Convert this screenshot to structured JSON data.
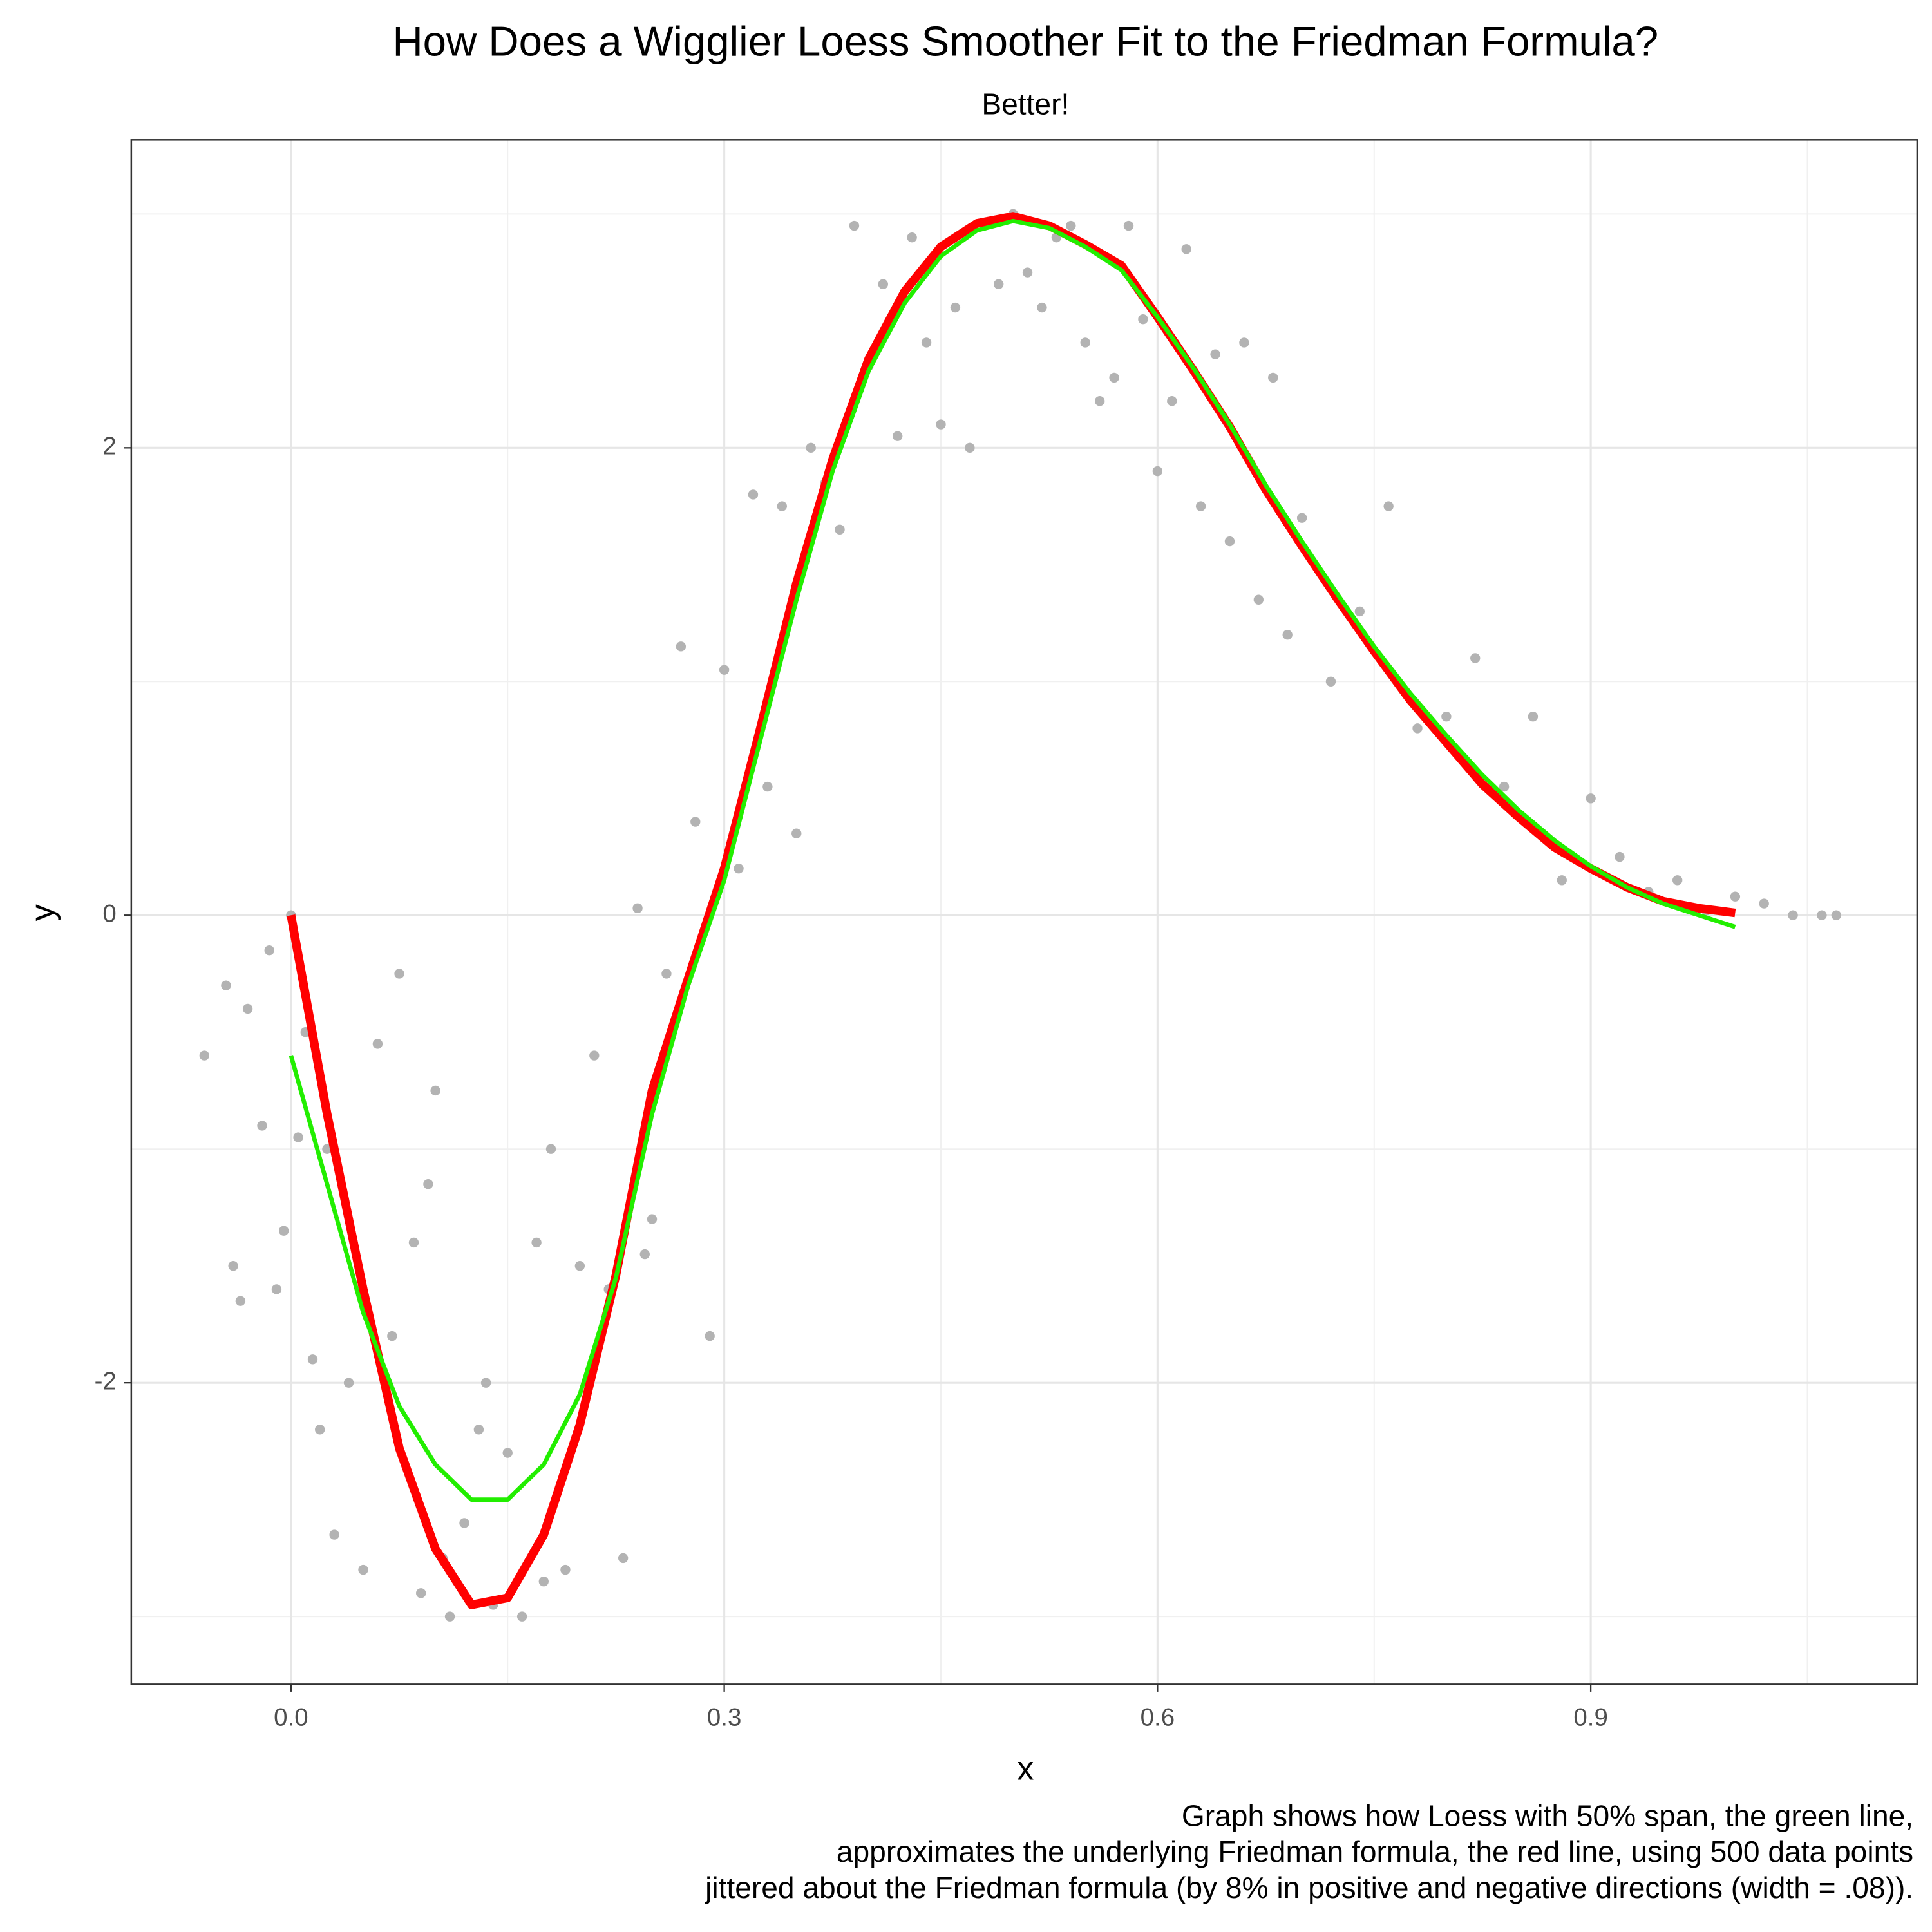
{
  "chart_data": {
    "type": "scatter",
    "title": "How Does a Wigglier Loess Smoother Fit to the Friedman Formula?",
    "subtitle": "Better!",
    "x_label": "x",
    "y_label": "y",
    "caption": [
      "Graph shows how Loess with 50% span, the green line,",
      "approximates the underlying Friedman formula, the red line, using 500 data points",
      "jittered about the Friedman formula (by 8% in positive and negative directions (width = .08))."
    ],
    "xlim": [
      -0.1106,
      1.126
    ],
    "ylim": [
      -3.29,
      3.317
    ],
    "xticks": [
      {
        "value": 0,
        "label": "0.0"
      },
      0.3,
      0.6,
      0.9
    ],
    "yticks": [
      -2,
      0,
      2
    ],
    "minor_xticks": [
      0.15,
      0.45,
      0.75,
      1.05
    ],
    "minor_yticks": [
      -3,
      -1,
      1,
      3
    ],
    "grid": true,
    "points": {
      "color": "#b3b3b3",
      "x": [
        -0.06,
        -0.045,
        -0.04,
        -0.035,
        -0.03,
        -0.02,
        -0.015,
        -0.01,
        -0.005,
        0.0,
        0.005,
        0.01,
        0.015,
        0.02,
        0.025,
        0.03,
        0.04,
        0.05,
        0.06,
        0.07,
        0.075,
        0.085,
        0.09,
        0.095,
        0.1,
        0.105,
        0.11,
        0.12,
        0.13,
        0.135,
        0.14,
        0.15,
        0.16,
        0.17,
        0.175,
        0.18,
        0.19,
        0.2,
        0.21,
        0.22,
        0.23,
        0.24,
        0.245,
        0.25,
        0.26,
        0.27,
        0.28,
        0.29,
        0.3,
        0.31,
        0.32,
        0.33,
        0.34,
        0.35,
        0.36,
        0.37,
        0.38,
        0.39,
        0.4,
        0.41,
        0.42,
        0.43,
        0.44,
        0.45,
        0.46,
        0.47,
        0.48,
        0.49,
        0.5,
        0.51,
        0.52,
        0.53,
        0.54,
        0.55,
        0.56,
        0.57,
        0.58,
        0.59,
        0.6,
        0.61,
        0.62,
        0.63,
        0.64,
        0.65,
        0.66,
        0.67,
        0.68,
        0.69,
        0.7,
        0.72,
        0.74,
        0.76,
        0.78,
        0.8,
        0.82,
        0.84,
        0.86,
        0.88,
        0.9,
        0.92,
        0.94,
        0.96,
        0.98,
        1.0,
        1.02,
        1.04,
        1.06,
        1.07
      ],
      "y": [
        -0.6,
        -0.3,
        -1.5,
        -1.65,
        -0.4,
        -0.9,
        -0.15,
        -1.6,
        -1.35,
        0.0,
        -0.95,
        -0.5,
        -1.9,
        -2.2,
        -1.0,
        -2.65,
        -2.0,
        -2.8,
        -0.55,
        -1.8,
        -0.25,
        -1.4,
        -2.9,
        -1.15,
        -0.75,
        -2.75,
        -3.0,
        -2.6,
        -2.2,
        -2.0,
        -2.95,
        -2.3,
        -3.0,
        -1.4,
        -2.85,
        -1.0,
        -2.8,
        -1.5,
        -0.6,
        -1.6,
        -2.75,
        0.03,
        -1.45,
        -1.3,
        -0.25,
        1.15,
        0.4,
        -1.8,
        1.05,
        0.2,
        1.8,
        0.55,
        1.75,
        0.35,
        2.0,
        1.85,
        1.65,
        2.95,
        2.35,
        2.7,
        2.05,
        2.9,
        2.45,
        2.1,
        2.6,
        2.0,
        2.95,
        2.7,
        3.0,
        2.75,
        2.6,
        2.9,
        2.95,
        2.45,
        2.2,
        2.3,
        2.95,
        2.55,
        1.9,
        2.2,
        2.85,
        1.75,
        2.4,
        1.6,
        2.45,
        1.35,
        2.3,
        1.2,
        1.7,
        1.0,
        1.3,
        1.75,
        0.8,
        0.85,
        1.1,
        0.55,
        0.85,
        0.15,
        0.5,
        0.25,
        0.1,
        0.15,
        0.02,
        0.08,
        0.05,
        0.0,
        0.0,
        0.0
      ]
    },
    "line_x": [
      0,
      0.025,
      0.05,
      0.075,
      0.1,
      0.125,
      0.15,
      0.175,
      0.2,
      0.225,
      0.25,
      0.275,
      0.3,
      0.325,
      0.35,
      0.375,
      0.4,
      0.425,
      0.45,
      0.475,
      0.5,
      0.525,
      0.55,
      0.575,
      0.6,
      0.625,
      0.65,
      0.675,
      0.7,
      0.725,
      0.75,
      0.775,
      0.8,
      0.825,
      0.85,
      0.875,
      0.9,
      0.925,
      0.95,
      0.975,
      1.0
    ],
    "lines": [
      {
        "color": "#ff0000",
        "values": [
          0,
          -0.85,
          -1.6,
          -2.28,
          -2.71,
          -2.95,
          -2.92,
          -2.65,
          -2.18,
          -1.54,
          -0.75,
          -0.27,
          0.2,
          0.8,
          1.42,
          1.95,
          2.38,
          2.67,
          2.86,
          2.96,
          2.99,
          2.95,
          2.87,
          2.78,
          2.56,
          2.33,
          2.09,
          1.82,
          1.58,
          1.35,
          1.13,
          0.92,
          0.74,
          0.56,
          0.42,
          0.29,
          0.2,
          0.12,
          0.06,
          0.03,
          0.01
        ]
      },
      {
        "color": "#22ee00",
        "values": [
          -0.6,
          -1.15,
          -1.7,
          -2.1,
          -2.35,
          -2.5,
          -2.5,
          -2.35,
          -2.05,
          -1.55,
          -0.85,
          -0.3,
          0.15,
          0.75,
          1.35,
          1.9,
          2.33,
          2.62,
          2.82,
          2.93,
          2.97,
          2.94,
          2.86,
          2.76,
          2.56,
          2.34,
          2.1,
          1.84,
          1.6,
          1.37,
          1.15,
          0.95,
          0.77,
          0.6,
          0.45,
          0.32,
          0.21,
          0.12,
          0.05,
          0.0,
          -0.05
        ]
      }
    ]
  }
}
